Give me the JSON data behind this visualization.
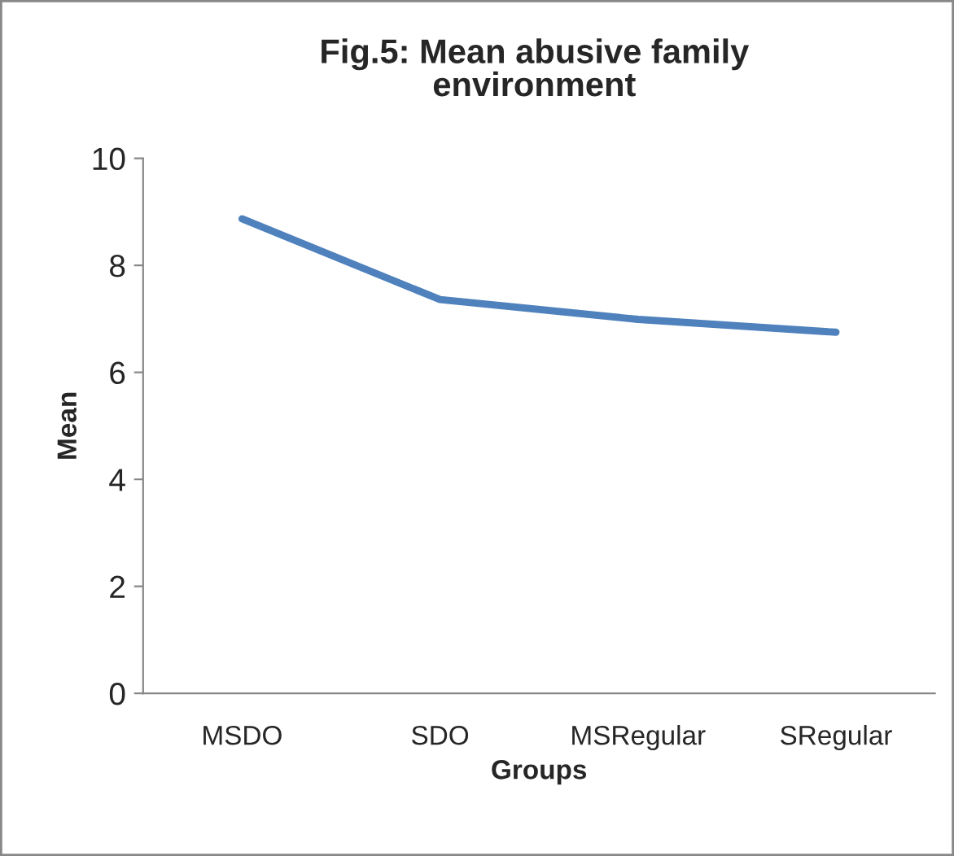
{
  "chart_data": {
    "type": "line",
    "title": "Fig.5: Mean abusive family environment",
    "xlabel": "Groups",
    "ylabel": "Mean",
    "categories": [
      "MSDO",
      "SDO",
      "MSRegular",
      "SRegular"
    ],
    "series": [
      {
        "color": "#4f81bd",
        "values": [
          8.87,
          7.36,
          6.99,
          6.75
        ]
      }
    ],
    "ylim": [
      0,
      10
    ],
    "yticks": [
      0,
      2,
      4,
      6,
      8,
      10
    ],
    "grid": false,
    "marker": "none",
    "line_style": "solid"
  }
}
